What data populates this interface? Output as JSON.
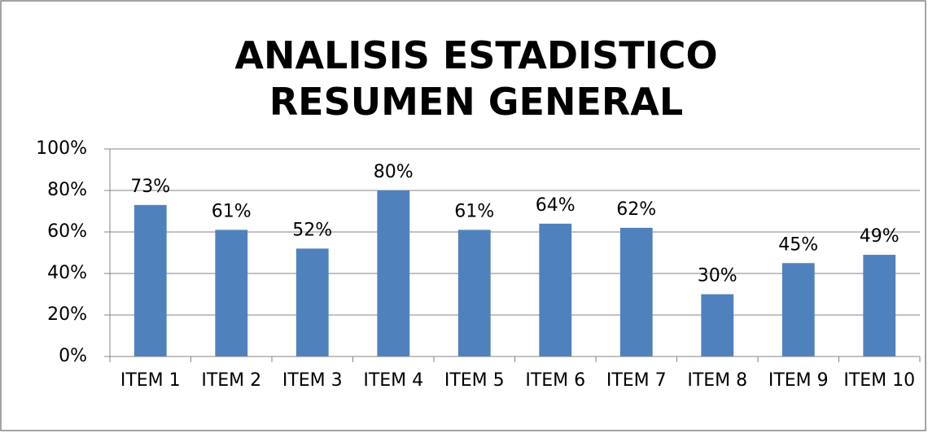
{
  "chart_data": {
    "type": "bar",
    "title": "ANALISIS ESTADISTICO RESUMEN GENERAL",
    "categories": [
      "ITEM 1",
      "ITEM 2",
      "ITEM 3",
      "ITEM 4",
      "ITEM 5",
      "ITEM 6",
      "ITEM 7",
      "ITEM 8",
      "ITEM 9",
      "ITEM 10"
    ],
    "values": [
      73,
      61,
      52,
      80,
      61,
      64,
      62,
      30,
      45,
      49
    ],
    "value_labels": [
      "73%",
      "61%",
      "52%",
      "80%",
      "61%",
      "64%",
      "62%",
      "30%",
      "45%",
      "49%"
    ],
    "color": "#4f81bd",
    "ylim": [
      0,
      100
    ],
    "yticks": [
      {
        "value": 0,
        "label": "0%"
      },
      {
        "value": 20,
        "label": "20%"
      },
      {
        "value": 40,
        "label": "40%"
      },
      {
        "value": 60,
        "label": "60%"
      },
      {
        "value": 80,
        "label": "80%"
      },
      {
        "value": 100,
        "label": "100%"
      }
    ],
    "grid": true
  }
}
